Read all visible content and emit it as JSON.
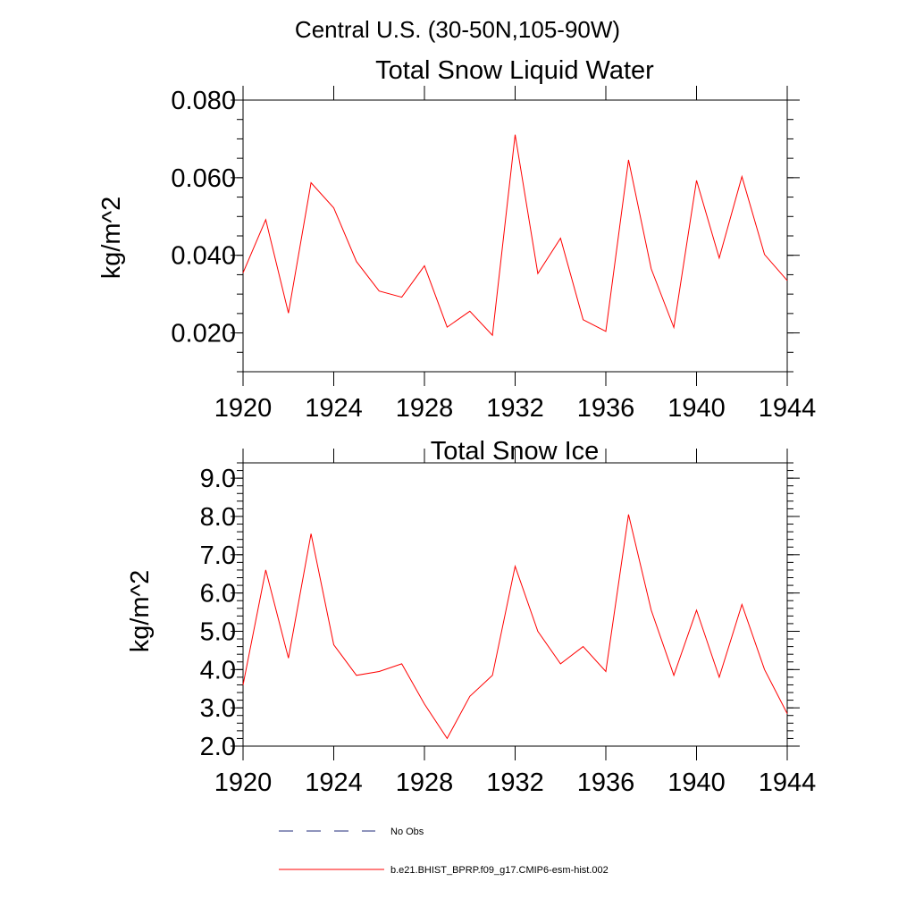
{
  "chart_data": {
    "suptitle": "Central U.S. (30-50N,105-90W)",
    "series_color": "#ff0000",
    "legend": [
      {
        "label": "No Obs",
        "style": "dashed",
        "color": "#1f2a7a"
      },
      {
        "label": "b.e21.BHIST_BPRP.f09_g17.CMIP6-esm-hist.002",
        "style": "solid",
        "color": "#ff0000"
      }
    ],
    "panels": [
      {
        "type": "line",
        "title": "Total Snow Liquid Water",
        "ylabel": "kg/m^2",
        "xlim": [
          1920,
          1944
        ],
        "ylim": [
          0.01,
          0.08
        ],
        "xticks": [
          1920,
          1924,
          1928,
          1932,
          1936,
          1940,
          1944
        ],
        "xticklabels": [
          "1920",
          "1924",
          "1928",
          "1932",
          "1936",
          "1940",
          "1944"
        ],
        "yticks": [
          0.02,
          0.04,
          0.06,
          0.08
        ],
        "yticklabels": [
          "0.020",
          "0.040",
          "0.060",
          "0.080"
        ],
        "yminor_step": 0.005,
        "x": [
          1920,
          1921,
          1922,
          1923,
          1924,
          1925,
          1926,
          1927,
          1928,
          1929,
          1930,
          1931,
          1932,
          1933,
          1934,
          1935,
          1936,
          1937,
          1938,
          1939,
          1940,
          1941,
          1942,
          1943,
          1944
        ],
        "y": [
          0.0355,
          0.0492,
          0.0251,
          0.0587,
          0.0522,
          0.0384,
          0.0308,
          0.0292,
          0.0373,
          0.0215,
          0.0256,
          0.0194,
          0.0711,
          0.0353,
          0.0444,
          0.0234,
          0.0204,
          0.0646,
          0.0365,
          0.0214,
          0.0593,
          0.0393,
          0.0603,
          0.0402,
          0.0335
        ]
      },
      {
        "type": "line",
        "title": "Total Snow Ice",
        "ylabel": "kg/m^2",
        "xlim": [
          1920,
          1944
        ],
        "ylim": [
          2.0,
          9.4
        ],
        "xticks": [
          1920,
          1924,
          1928,
          1932,
          1936,
          1940,
          1944
        ],
        "xticklabels": [
          "1920",
          "1924",
          "1928",
          "1932",
          "1936",
          "1940",
          "1944"
        ],
        "yticks": [
          2,
          3,
          4,
          5,
          6,
          7,
          8,
          9
        ],
        "yticklabels": [
          "2.0",
          "3.0",
          "4.0",
          "5.0",
          "6.0",
          "7.0",
          "8.0",
          "9.0"
        ],
        "yminor_step": 0.2,
        "x": [
          1920,
          1921,
          1922,
          1923,
          1924,
          1925,
          1926,
          1927,
          1928,
          1929,
          1930,
          1931,
          1932,
          1933,
          1934,
          1935,
          1936,
          1937,
          1938,
          1939,
          1940,
          1941,
          1942,
          1943,
          1944
        ],
        "y": [
          3.6,
          6.6,
          4.3,
          7.55,
          4.65,
          3.85,
          3.95,
          4.15,
          3.1,
          2.2,
          3.3,
          3.85,
          6.7,
          5.0,
          4.15,
          4.6,
          3.95,
          8.05,
          5.55,
          3.85,
          5.55,
          3.8,
          5.7,
          4.0,
          2.85
        ]
      }
    ]
  }
}
